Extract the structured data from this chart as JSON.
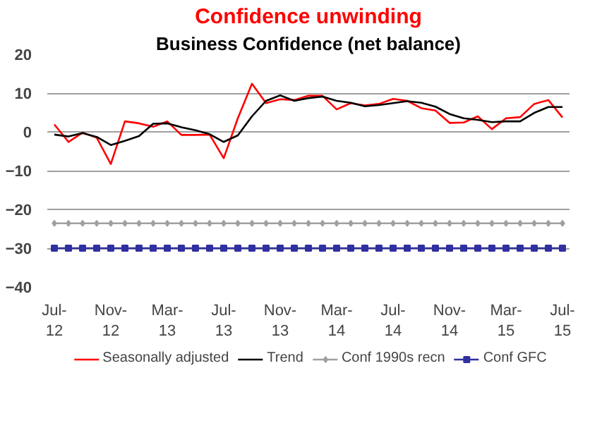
{
  "chart_data": {
    "type": "line",
    "title": "Confidence unwinding",
    "subtitle": "Business Confidence (net balance)",
    "categories": [
      "Jul-12",
      null,
      null,
      null,
      "Nov-12",
      null,
      null,
      null,
      "Mar-13",
      null,
      null,
      null,
      "Jul-13",
      null,
      null,
      null,
      "Nov-13",
      null,
      null,
      null,
      "Mar-14",
      null,
      null,
      null,
      "Jul-14",
      null,
      null,
      null,
      "Nov-14",
      null,
      null,
      null,
      "Mar-15",
      null,
      null,
      null,
      "Jul-15"
    ],
    "series": [
      {
        "name": "Seasonally adjusted",
        "color": "#ff0000",
        "marker": "none",
        "values": [
          1.9,
          -2.6,
          -0.2,
          -1.5,
          -8.3,
          2.7,
          2.2,
          1.3,
          2.7,
          -0.8,
          -0.8,
          -0.7,
          -6.8,
          3.5,
          12.4,
          7.4,
          8.4,
          8.2,
          9.3,
          9.3,
          5.8,
          7.4,
          6.8,
          7.2,
          8.5,
          8.0,
          6.1,
          5.5,
          2.3,
          2.4,
          4.0,
          0.7,
          3.5,
          3.8,
          7.2,
          8.2,
          3.7
        ]
      },
      {
        "name": "Trend",
        "color": "#000000",
        "marker": "none",
        "values": [
          -0.7,
          -1.2,
          -0.3,
          -1.3,
          -3.4,
          -2.3,
          -1.1,
          2.1,
          2.2,
          1.2,
          0.4,
          -0.6,
          -2.6,
          -0.9,
          4.0,
          8.0,
          9.4,
          8.0,
          8.7,
          9.1,
          8.0,
          7.5,
          6.6,
          6.9,
          7.4,
          7.9,
          7.5,
          6.5,
          4.6,
          3.5,
          3.1,
          2.5,
          2.7,
          2.7,
          4.9,
          6.4,
          6.4
        ]
      },
      {
        "name": "Conf 1990s recn",
        "color": "#a0a0a0",
        "marker": "diamond",
        "values": [
          -23.6,
          -23.6,
          -23.6,
          -23.6,
          -23.6,
          -23.6,
          -23.6,
          -23.6,
          -23.6,
          -23.6,
          -23.6,
          -23.6,
          -23.6,
          -23.6,
          -23.6,
          -23.6,
          -23.6,
          -23.6,
          -23.6,
          -23.6,
          -23.6,
          -23.6,
          -23.6,
          -23.6,
          -23.6,
          -23.6,
          -23.6,
          -23.6,
          -23.6,
          -23.6,
          -23.6,
          -23.6,
          -23.6,
          -23.6,
          -23.6,
          -23.6,
          -23.6
        ]
      },
      {
        "name": "Conf GFC",
        "color": "#3030a0",
        "marker": "square",
        "values": [
          -30,
          -30,
          -30,
          -30,
          -30,
          -30,
          -30,
          -30,
          -30,
          -30,
          -30,
          -30,
          -30,
          -30,
          -30,
          -30,
          -30,
          -30,
          -30,
          -30,
          -30,
          -30,
          -30,
          -30,
          -30,
          -30,
          -30,
          -30,
          -30,
          -30,
          -30,
          -30,
          -30,
          -30,
          -30,
          -30,
          -30
        ]
      }
    ],
    "ylim": [
      -40,
      20
    ],
    "yticks": [
      -40,
      -30,
      -20,
      -10,
      0,
      10,
      20
    ],
    "grid": "y",
    "legend": "bottom",
    "line_style": "solid"
  }
}
